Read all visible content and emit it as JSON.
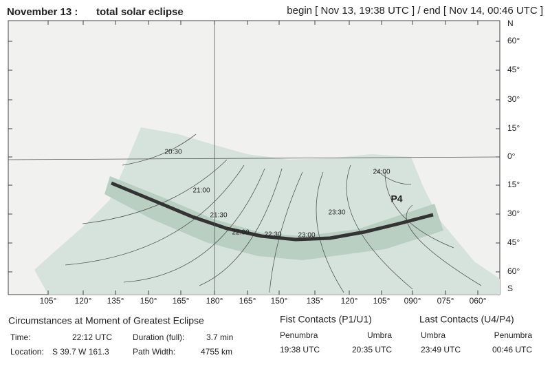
{
  "header": {
    "date": "November 13 :",
    "kind": "total solar eclipse",
    "range": "begin [ Nov 13, 19:38 UTC ] /  end [ Nov 14, 00:46 UTC ]"
  },
  "map": {
    "lat_labels": [
      "N",
      "60°",
      "45°",
      "30°",
      "15°",
      "0°",
      "15°",
      "30°",
      "45°",
      "60°",
      "S"
    ],
    "lon_labels": [
      "105°",
      "120°",
      "135°",
      "150°",
      "165°",
      "180°",
      "165°",
      "150°",
      "135°",
      "120°",
      "105°",
      "090°",
      "075°",
      "060°"
    ],
    "time_labels": [
      "20:30",
      "21:00",
      "21:30",
      "22:00",
      "22:30",
      "23:00",
      "23:30",
      "24:00",
      "P4"
    ]
  },
  "circumstances": {
    "title": "Circumstances at Moment of Greatest Eclipse",
    "time_label": "Time:",
    "time": "22:12 UTC",
    "duration_label": "Duration (full):",
    "duration": "3.7 min",
    "location_label": "Location:",
    "location": "S 39.7  W 161.3",
    "width_label": "Path Width:",
    "width": "4755 km"
  },
  "first_contacts": {
    "title": "Fist Contacts  (P1/U1)",
    "col1": "Penumbra",
    "col2": "Umbra",
    "val1": "19:38 UTC",
    "val2": "20:35 UTC"
  },
  "last_contacts": {
    "title": "Last Contacts  (U4/P4)",
    "col1": "Umbra",
    "col2": "Penumbra",
    "val1": "23:49 UTC",
    "val2": "00:46 UTC"
  }
}
